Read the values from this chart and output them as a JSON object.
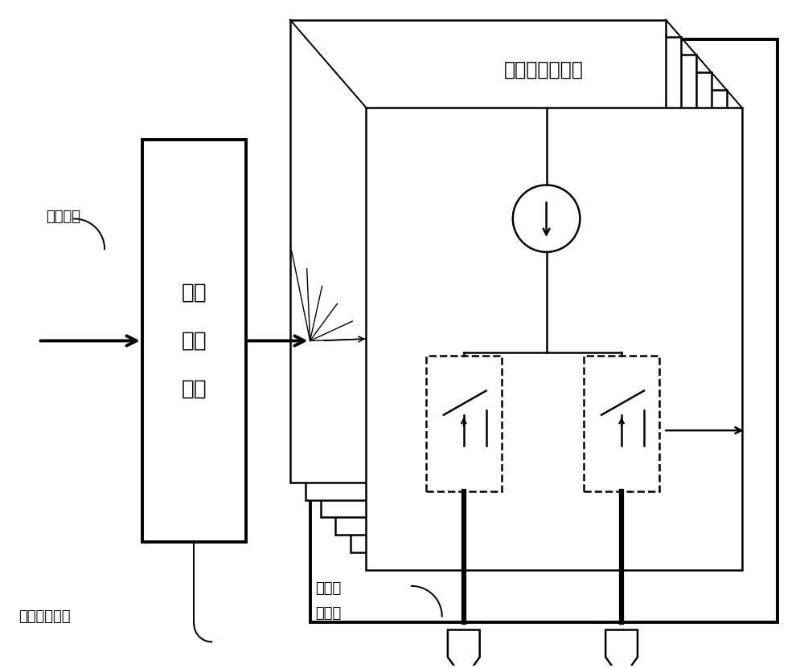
{
  "bg_color": "#ffffff",
  "title_text": "电流源开关阵列",
  "label_digital_input": "数字输入",
  "label_control_bus": "控制信号总线",
  "label_diff_output_1": "差分电",
  "label_diff_output_2": "流输出",
  "label_decode_1": "译码",
  "label_decode_2": "缓冲",
  "label_decode_3": "模块",
  "font_size_title": 17,
  "font_size_label": 13,
  "font_size_box": 19
}
